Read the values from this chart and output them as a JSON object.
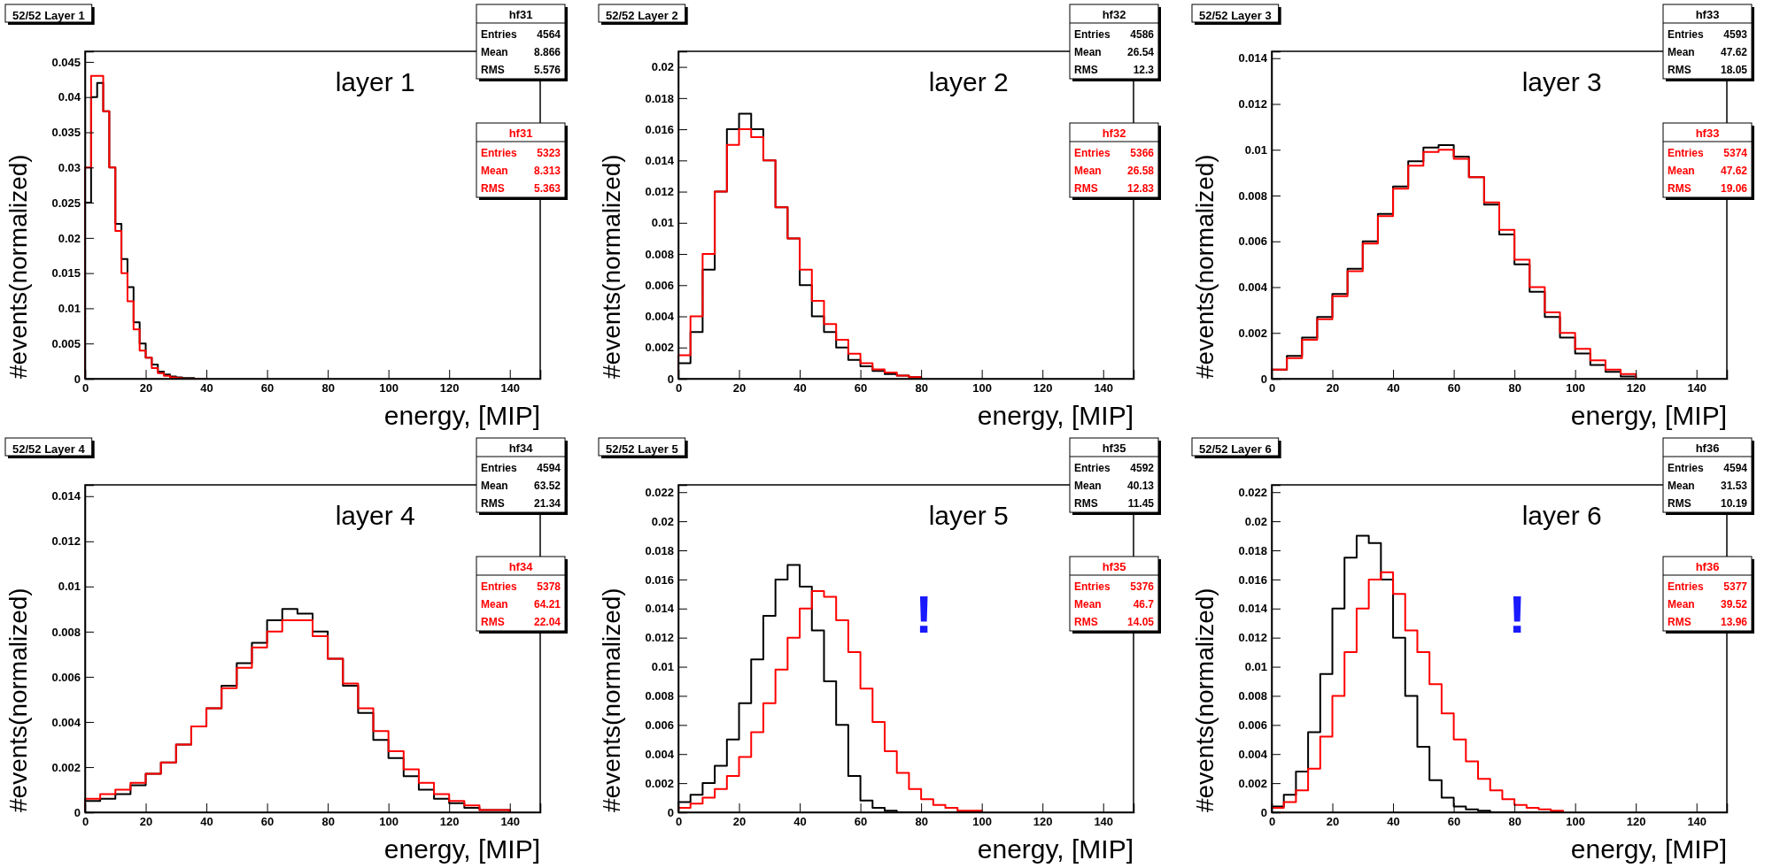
{
  "chart_data": [
    {
      "type": "histogram",
      "title": "52/52 Layer 1",
      "xlabel": "energy, [MIP]",
      "ylabel": "#events(normalized)",
      "legend": "top right",
      "xlim": [
        0,
        150
      ],
      "xticks": [
        0,
        20,
        40,
        60,
        80,
        100,
        120,
        140
      ],
      "ylim": [
        0,
        0.0465
      ],
      "yticks": [
        0,
        0.005,
        0.01,
        0.015,
        0.02,
        0.025,
        0.03,
        0.035,
        0.04,
        0.045
      ],
      "annotations": [
        "layer 1",
        "Entries",
        "4564",
        "Mean",
        "8.866",
        "RMS",
        "5.576",
        "Entries",
        "5323",
        "Mean",
        "8.313",
        "RMS",
        "5.363"
      ],
      "bins": [
        0,
        2,
        4,
        6,
        8,
        10,
        12,
        14,
        16,
        18,
        20,
        22,
        24,
        26,
        28,
        30,
        32,
        34,
        36,
        38,
        40
      ],
      "series": [
        {
          "name": "hf31",
          "color": "#000000",
          "values": [
            0.025,
            0.04,
            0.042,
            0.038,
            0.03,
            0.022,
            0.017,
            0.013,
            0.008,
            0.005,
            0.003,
            0.002,
            0.001,
            0.0006,
            0.0003,
            0.0002,
            0.0001,
            0.0001,
            0,
            0
          ]
        },
        {
          "name": "hf31",
          "color": "#ff0000",
          "values": [
            0.03,
            0.043,
            0.043,
            0.038,
            0.03,
            0.021,
            0.015,
            0.011,
            0.007,
            0.004,
            0.003,
            0.0015,
            0.0008,
            0.0004,
            0.0002,
            0.0001,
            0,
            0,
            0,
            0
          ]
        }
      ]
    },
    {
      "type": "histogram",
      "title": "52/52 Layer 2",
      "xlabel": "energy, [MIP]",
      "ylabel": "#events(normalized)",
      "legend": "top right",
      "xlim": [
        0,
        150
      ],
      "xticks": [
        0,
        20,
        40,
        60,
        80,
        100,
        120,
        140
      ],
      "ylim": [
        0,
        0.021
      ],
      "yticks": [
        0,
        0.002,
        0.004,
        0.006,
        0.008,
        0.01,
        0.012,
        0.014,
        0.016,
        0.018,
        0.02
      ],
      "annotations": [
        "layer 2",
        "Entries",
        "4586",
        "Mean",
        "26.54",
        "RMS",
        "12.3",
        "Entries",
        "5366",
        "Mean",
        "26.58",
        "RMS",
        "12.83"
      ],
      "bins": [
        0,
        4,
        8,
        12,
        16,
        20,
        24,
        28,
        32,
        36,
        40,
        44,
        48,
        52,
        56,
        60,
        64,
        68,
        72,
        76,
        80
      ],
      "series": [
        {
          "name": "hf32",
          "color": "#000000",
          "values": [
            0.001,
            0.003,
            0.007,
            0.012,
            0.016,
            0.017,
            0.016,
            0.014,
            0.011,
            0.009,
            0.006,
            0.004,
            0.003,
            0.002,
            0.0012,
            0.0008,
            0.0005,
            0.0003,
            0.0002,
            0.0001
          ]
        },
        {
          "name": "hf32",
          "color": "#ff0000",
          "values": [
            0.0015,
            0.004,
            0.008,
            0.012,
            0.015,
            0.016,
            0.0155,
            0.014,
            0.011,
            0.009,
            0.007,
            0.005,
            0.0035,
            0.0025,
            0.0016,
            0.001,
            0.0006,
            0.0004,
            0.0002,
            0.0001
          ]
        }
      ]
    },
    {
      "type": "histogram",
      "title": "52/52 Layer 3",
      "xlabel": "energy, [MIP]",
      "ylabel": "#events(normalized)",
      "legend": "top right",
      "xlim": [
        0,
        150
      ],
      "xticks": [
        0,
        20,
        40,
        60,
        80,
        100,
        120,
        140
      ],
      "ylim": [
        0,
        0.0143
      ],
      "yticks": [
        0,
        0.002,
        0.004,
        0.006,
        0.008,
        0.01,
        0.012,
        0.014
      ],
      "annotations": [
        "layer 3",
        "Entries",
        "4593",
        "Mean",
        "47.62",
        "RMS",
        "18.05",
        "Entries",
        "5374",
        "Mean",
        "47.62",
        "RMS",
        "19.06"
      ],
      "bins": [
        0,
        5,
        10,
        15,
        20,
        25,
        30,
        35,
        40,
        45,
        50,
        55,
        60,
        65,
        70,
        75,
        80,
        85,
        90,
        95,
        100,
        105,
        110,
        115,
        120
      ],
      "series": [
        {
          "name": "hf33",
          "color": "#000000",
          "values": [
            0.0004,
            0.001,
            0.0018,
            0.0027,
            0.0037,
            0.0048,
            0.006,
            0.0072,
            0.0084,
            0.0095,
            0.0101,
            0.0102,
            0.0097,
            0.0088,
            0.0076,
            0.0063,
            0.005,
            0.0038,
            0.0027,
            0.0018,
            0.0011,
            0.0006,
            0.0003,
            0.0001
          ]
        },
        {
          "name": "hf33",
          "color": "#ff0000",
          "values": [
            0.0004,
            0.0009,
            0.0017,
            0.0026,
            0.0036,
            0.0047,
            0.0059,
            0.0071,
            0.0083,
            0.0093,
            0.0099,
            0.01,
            0.0096,
            0.0088,
            0.0077,
            0.0065,
            0.0052,
            0.004,
            0.0029,
            0.002,
            0.0013,
            0.0008,
            0.0004,
            0.0002
          ]
        }
      ]
    },
    {
      "type": "histogram",
      "title": "52/52 Layer 4",
      "xlabel": "energy, [MIP]",
      "ylabel": "#events(normalized)",
      "legend": "top right",
      "xlim": [
        0,
        150
      ],
      "xticks": [
        0,
        20,
        40,
        60,
        80,
        100,
        120,
        140
      ],
      "ylim": [
        0,
        0.0145
      ],
      "yticks": [
        0,
        0.002,
        0.004,
        0.006,
        0.008,
        0.01,
        0.012,
        0.014
      ],
      "annotations": [
        "layer 4",
        "Entries",
        "4594",
        "Mean",
        "63.52",
        "RMS",
        "21.34",
        "Entries",
        "5378",
        "Mean",
        "64.21",
        "RMS",
        "22.04"
      ],
      "bins": [
        0,
        5,
        10,
        15,
        20,
        25,
        30,
        35,
        40,
        45,
        50,
        55,
        60,
        65,
        70,
        75,
        80,
        85,
        90,
        95,
        100,
        105,
        110,
        115,
        120,
        125,
        130,
        135,
        140
      ],
      "series": [
        {
          "name": "hf34",
          "color": "#000000",
          "values": [
            0.0005,
            0.0006,
            0.0008,
            0.0012,
            0.0017,
            0.0022,
            0.003,
            0.0038,
            0.0046,
            0.0056,
            0.0066,
            0.0075,
            0.0085,
            0.009,
            0.0088,
            0.008,
            0.0068,
            0.0056,
            0.0044,
            0.0032,
            0.0024,
            0.0016,
            0.001,
            0.0006,
            0.0004,
            0.0002,
            0.0001,
            0.0001
          ]
        },
        {
          "name": "hf34",
          "color": "#ff0000",
          "values": [
            0.0006,
            0.0008,
            0.001,
            0.0013,
            0.0017,
            0.0022,
            0.003,
            0.0038,
            0.0046,
            0.0055,
            0.0064,
            0.0073,
            0.008,
            0.0085,
            0.0085,
            0.0078,
            0.0068,
            0.0057,
            0.0046,
            0.0036,
            0.0027,
            0.0019,
            0.0013,
            0.0008,
            0.0005,
            0.0003,
            0.0001,
            0.0001
          ]
        }
      ]
    },
    {
      "type": "histogram",
      "title": "52/52 Layer 5",
      "xlabel": "energy, [MIP]",
      "ylabel": "#events(normalized)",
      "legend": "top right",
      "xlim": [
        0,
        150
      ],
      "xticks": [
        0,
        20,
        40,
        60,
        80,
        100,
        120,
        140
      ],
      "ylim": [
        0,
        0.0225
      ],
      "yticks": [
        0,
        0.002,
        0.004,
        0.006,
        0.008,
        0.01,
        0.012,
        0.014,
        0.016,
        0.018,
        0.02,
        0.022
      ],
      "annotations": [
        "layer 5",
        "Entries",
        "4592",
        "Mean",
        "40.13",
        "RMS",
        "11.45",
        "Entries",
        "5376",
        "Mean",
        "46.7",
        "RMS",
        "14.05",
        "!"
      ],
      "bins": [
        0,
        4,
        8,
        12,
        16,
        20,
        24,
        28,
        32,
        36,
        40,
        44,
        48,
        52,
        56,
        60,
        64,
        68,
        72,
        76,
        80,
        84,
        88,
        92,
        96,
        100
      ],
      "series": [
        {
          "name": "hf35",
          "color": "#000000",
          "values": [
            0.0007,
            0.0012,
            0.002,
            0.0032,
            0.005,
            0.0075,
            0.0105,
            0.0135,
            0.016,
            0.017,
            0.0155,
            0.0125,
            0.009,
            0.006,
            0.0025,
            0.0008,
            0.0003,
            0.0001,
            0,
            0,
            0,
            0,
            0,
            0,
            0
          ]
        },
        {
          "name": "hf35",
          "color": "#ff0000",
          "values": [
            0.0003,
            0.0006,
            0.001,
            0.0016,
            0.0025,
            0.0038,
            0.0055,
            0.0075,
            0.0098,
            0.012,
            0.014,
            0.0152,
            0.0148,
            0.0132,
            0.011,
            0.0085,
            0.0062,
            0.0042,
            0.0027,
            0.0016,
            0.0009,
            0.0005,
            0.0003,
            0.0001,
            0.0001
          ]
        }
      ]
    },
    {
      "type": "histogram",
      "title": "52/52 Layer 6",
      "xlabel": "energy, [MIP]",
      "ylabel": "#events(normalized)",
      "legend": "top right",
      "xlim": [
        0,
        150
      ],
      "xticks": [
        0,
        20,
        40,
        60,
        80,
        100,
        120,
        140
      ],
      "ylim": [
        0,
        0.0225
      ],
      "yticks": [
        0,
        0.002,
        0.004,
        0.006,
        0.008,
        0.01,
        0.012,
        0.014,
        0.016,
        0.018,
        0.02,
        0.022
      ],
      "annotations": [
        "layer 6",
        "Entries",
        "4594",
        "Mean",
        "31.53",
        "RMS",
        "10.19",
        "Entries",
        "5377",
        "Mean",
        "39.52",
        "RMS",
        "13.96",
        "!"
      ],
      "bins": [
        0,
        4,
        8,
        12,
        16,
        20,
        24,
        28,
        32,
        36,
        40,
        44,
        48,
        52,
        56,
        60,
        64,
        68,
        72,
        76,
        80,
        84,
        88,
        92,
        96
      ],
      "series": [
        {
          "name": "hf36",
          "color": "#000000",
          "values": [
            0.0004,
            0.0012,
            0.0028,
            0.0055,
            0.0095,
            0.014,
            0.0175,
            0.019,
            0.0185,
            0.016,
            0.012,
            0.008,
            0.0045,
            0.0022,
            0.001,
            0.0004,
            0.0002,
            0.0001,
            0,
            0,
            0,
            0,
            0,
            0
          ]
        },
        {
          "name": "hf36",
          "color": "#ff0000",
          "values": [
            0.0003,
            0.0007,
            0.0015,
            0.003,
            0.0052,
            0.008,
            0.011,
            0.014,
            0.016,
            0.0165,
            0.015,
            0.0125,
            0.011,
            0.0088,
            0.0068,
            0.005,
            0.0035,
            0.0023,
            0.0015,
            0.0009,
            0.0005,
            0.0003,
            0.0002,
            0.0001
          ]
        }
      ]
    }
  ]
}
